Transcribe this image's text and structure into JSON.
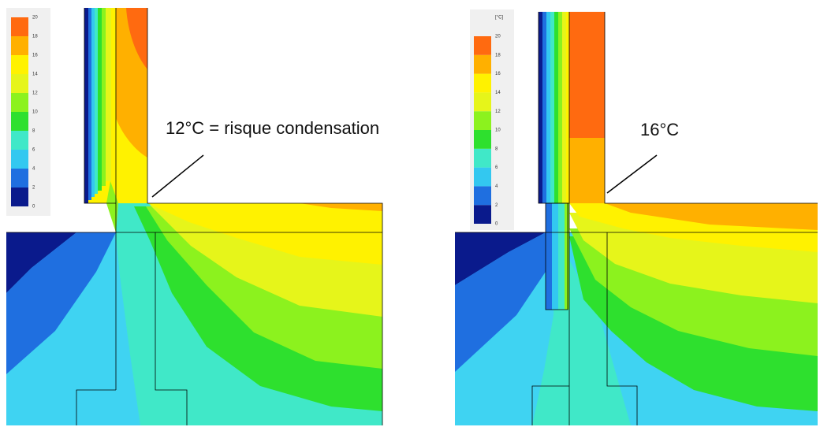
{
  "panels": [
    {
      "legend": {
        "ticks": [
          0,
          2,
          4,
          6,
          8,
          10,
          12,
          14,
          16,
          18,
          20
        ],
        "colors": [
          "#0a1a8c",
          "#1f6fe0",
          "#33c8f0",
          "#40e8c8",
          "#2ee02e",
          "#8cf21e",
          "#e6f51a",
          "#fff200",
          "#ffb000",
          "#ff6a10"
        ]
      },
      "annotation": "12°C = risque condensation"
    },
    {
      "legend": {
        "unit": "[°C]",
        "ticks": [
          0,
          2,
          4,
          6,
          8,
          10,
          12,
          14,
          16,
          18,
          20
        ],
        "colors": [
          "#0a1a8c",
          "#1f6fe0",
          "#33c8f0",
          "#40e8c8",
          "#2ee02e",
          "#8cf21e",
          "#e6f51a",
          "#fff200",
          "#ffb000",
          "#ff6a10"
        ]
      },
      "annotation": "16°C"
    }
  ]
}
